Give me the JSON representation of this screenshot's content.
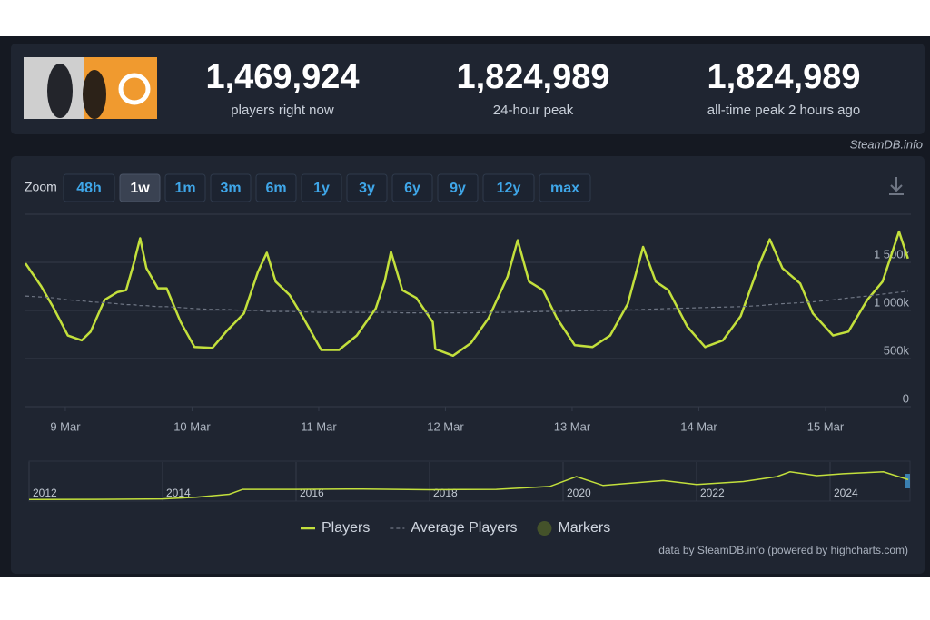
{
  "header": {
    "stats": [
      {
        "value": "1,469,924",
        "label": "players right now"
      },
      {
        "value": "1,824,989",
        "label": "24-hour peak"
      },
      {
        "value": "1,824,989",
        "label": "all-time peak 2 hours ago"
      }
    ],
    "source": "SteamDB.info"
  },
  "zoom": {
    "label": "Zoom",
    "buttons": [
      "48h",
      "1w",
      "1m",
      "3m",
      "6m",
      "1y",
      "3y",
      "6y",
      "9y",
      "12y",
      "max"
    ],
    "active": 1
  },
  "chart_data": [
    {
      "type": "line",
      "x": [
        8.685,
        8.81,
        8.91,
        9.02,
        9.13,
        9.2,
        9.31,
        9.41,
        9.48,
        9.54,
        9.59,
        9.64,
        9.73,
        9.8,
        9.91,
        10.02,
        10.16,
        10.27,
        10.41,
        10.52,
        10.59,
        10.66,
        10.77,
        10.88,
        11.02,
        11.16,
        11.3,
        11.45,
        11.52,
        11.57,
        11.66,
        11.77,
        11.9,
        11.92,
        12.06,
        12.2,
        12.34,
        12.49,
        12.57,
        12.66,
        12.77,
        12.88,
        13.02,
        13.16,
        13.3,
        13.44,
        13.56,
        13.66,
        13.76,
        13.91,
        14.05,
        14.19,
        14.33,
        14.48,
        14.56,
        14.66,
        14.8,
        14.9,
        15.06,
        15.18,
        15.33,
        15.45,
        15.58,
        15.65
      ],
      "series": [
        {
          "name": "Players",
          "color": "#c3e03c",
          "dash": false,
          "values": [
            1490000,
            1250000,
            1020000,
            740000,
            690000,
            780000,
            1110000,
            1190000,
            1210000,
            1490000,
            1750000,
            1440000,
            1230000,
            1230000,
            880000,
            620000,
            610000,
            780000,
            970000,
            1400000,
            1600000,
            1300000,
            1160000,
            920000,
            590000,
            590000,
            740000,
            1020000,
            1300000,
            1610000,
            1210000,
            1130000,
            880000,
            600000,
            530000,
            660000,
            920000,
            1350000,
            1730000,
            1300000,
            1210000,
            920000,
            640000,
            620000,
            740000,
            1070000,
            1660000,
            1300000,
            1210000,
            830000,
            620000,
            690000,
            940000,
            1490000,
            1740000,
            1440000,
            1280000,
            970000,
            740000,
            780000,
            1110000,
            1300000,
            1820000,
            1540000
          ]
        },
        {
          "name": "Average Players",
          "color": "#6f7684",
          "dash": true,
          "values": [
            1150000,
            1140000,
            1130000,
            1110000,
            1100000,
            1090000,
            1080000,
            1070000,
            1060000,
            1060000,
            1050000,
            1050000,
            1040000,
            1040000,
            1030000,
            1020000,
            1010000,
            1010000,
            1000000,
            1000000,
            990000,
            990000,
            990000,
            985000,
            980000,
            980000,
            980000,
            980000,
            980000,
            980000,
            975000,
            975000,
            975000,
            975000,
            975000,
            975000,
            980000,
            980000,
            985000,
            985000,
            990000,
            990000,
            995000,
            1000000,
            1000000,
            1005000,
            1010000,
            1015000,
            1020000,
            1025000,
            1030000,
            1035000,
            1040000,
            1050000,
            1060000,
            1070000,
            1080000,
            1090000,
            1110000,
            1130000,
            1150000,
            1170000,
            1190000,
            1200000
          ]
        }
      ],
      "markers": {
        "name": "Markers",
        "color": "#44522a"
      },
      "xlim": [
        8.685,
        15.674
      ],
      "xticks": [
        {
          "value": 9,
          "label": "9 Mar"
        },
        {
          "value": 10,
          "label": "10 Mar"
        },
        {
          "value": 11,
          "label": "11 Mar"
        },
        {
          "value": 12,
          "label": "12 Mar"
        },
        {
          "value": 13,
          "label": "13 Mar"
        },
        {
          "value": 14,
          "label": "14 Mar"
        },
        {
          "value": 15,
          "label": "15 Mar"
        }
      ],
      "ylim": [
        0,
        2000000
      ],
      "yticks": [
        0,
        {
          "value": 500000,
          "label": "500k"
        },
        {
          "value": 1000000,
          "label": "1 000k"
        },
        {
          "value": 1500000,
          "label": "1 500k"
        },
        {
          "value": 2000000,
          "label": ""
        }
      ],
      "grid": true
    },
    {
      "type": "area",
      "x": [
        2012,
        2013,
        2014,
        2014.5,
        2015,
        2015.2,
        2016,
        2017,
        2018,
        2019,
        2019.8,
        2020.2,
        2020.6,
        2021.5,
        2022,
        2022.7,
        2023.2,
        2023.4,
        2023.8,
        2024.2,
        2024.8,
        2025.17
      ],
      "series": [
        {
          "color": "#c3e03c",
          "values": [
            80000,
            90000,
            110000,
            200000,
            350000,
            600000,
            600000,
            620000,
            580000,
            600000,
            750000,
            1250000,
            800000,
            1050000,
            850000,
            1000000,
            1250000,
            1500000,
            1300000,
            1400000,
            1500000,
            1100000
          ]
        }
      ],
      "xlim": [
        2012,
        2025.17
      ],
      "xticks": [
        2012,
        2014,
        2016,
        2018,
        2020,
        2022,
        2024
      ],
      "ylim": [
        0,
        2000000
      ]
    }
  ],
  "credits": "data by SteamDB.info (powered by highcharts.com)"
}
